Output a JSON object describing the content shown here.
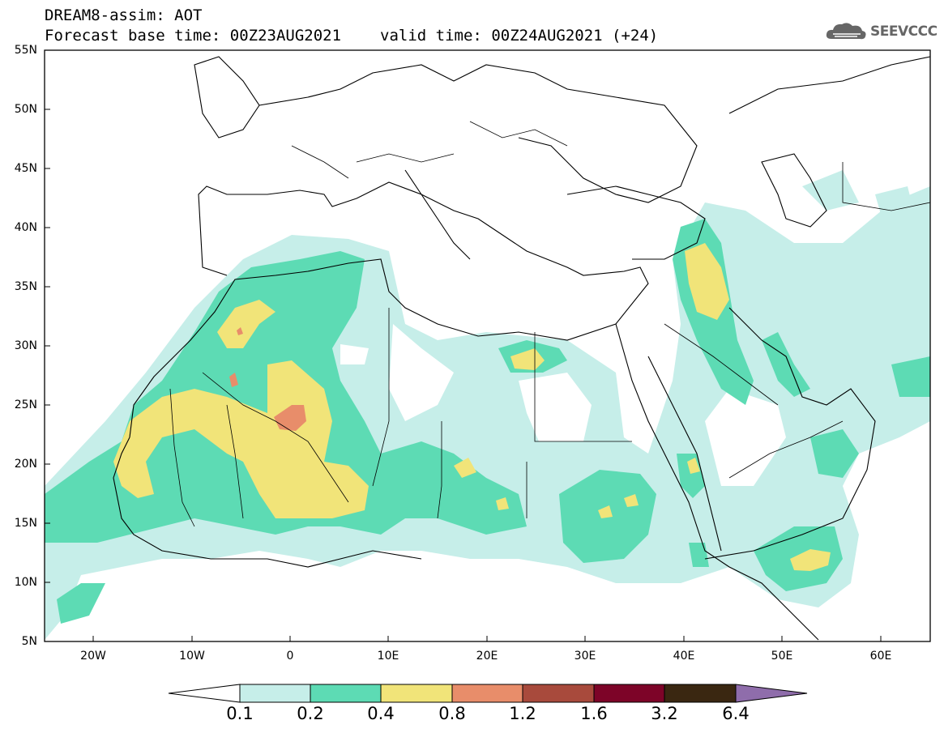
{
  "header": {
    "line1": "DREAM8-assim: AOT",
    "base_time": "Forecast base time: 00Z23AUG2021",
    "valid_time": "valid time: 00Z24AUG2021 (+24)"
  },
  "logo": {
    "text": "SEEVCCC",
    "icon": "cloud-icon"
  },
  "axes": {
    "lat_labels": [
      "55N",
      "50N",
      "45N",
      "40N",
      "35N",
      "30N",
      "25N",
      "20N",
      "15N",
      "10N",
      "5N"
    ],
    "lon_labels": [
      "20W",
      "10W",
      "0",
      "10E",
      "20E",
      "30E",
      "40E",
      "50E",
      "60E"
    ],
    "lat_range": [
      5,
      55
    ],
    "lon_range": [
      -25,
      65
    ]
  },
  "colorbar": {
    "labels": [
      "0.1",
      "0.2",
      "0.4",
      "0.8",
      "1.2",
      "1.6",
      "3.2",
      "6.4"
    ],
    "colors": [
      "#c6eee9",
      "#5ddbb4",
      "#f1e479",
      "#e88d6a",
      "#a84a3c",
      "#7d0428",
      "#3a2711",
      "#8f6dab"
    ],
    "under_color": "#ffffff"
  },
  "fields": {
    "c01": "#c6eee9",
    "c02": "#5ddbb4",
    "c04": "#f1e479",
    "c08": "#e88d6a"
  }
}
